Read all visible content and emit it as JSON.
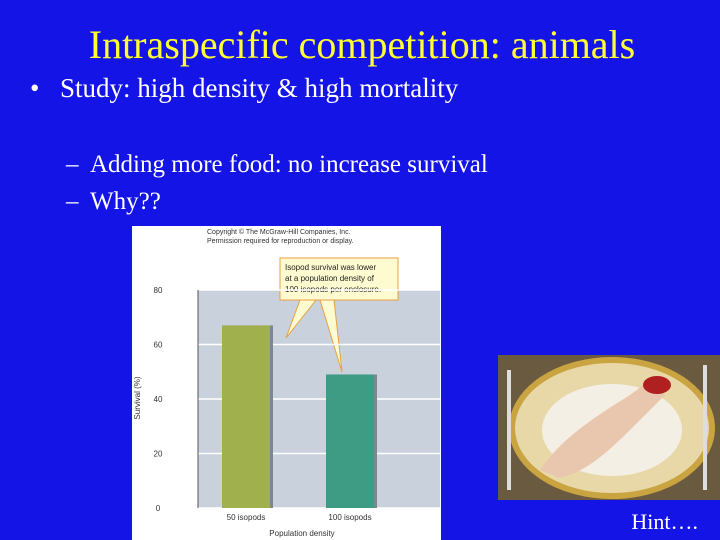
{
  "slide": {
    "title": "Intraspecific competition: animals",
    "bullet": "Study: high density & high mortality",
    "subbullets": [
      "Adding more food: no increase survival",
      "Why??"
    ],
    "hint": "Hint…."
  },
  "chart_data": {
    "type": "bar",
    "copyright": [
      "Copyright © The McGraw-Hill Companies, Inc.",
      "Permission required for reproduction or display."
    ],
    "annotation": [
      "Isopod survival was lower",
      "at a population density of",
      "100 isopods per enclosure."
    ],
    "categories": [
      "50 isopods",
      "100 isopods"
    ],
    "values": [
      67,
      49
    ],
    "colors": [
      "#9fb04c",
      "#3f9c84"
    ],
    "ylabel": "Survival (%)",
    "xlabel": "Population density",
    "ylim": [
      0,
      80
    ],
    "yticks": [
      0,
      20,
      40,
      60,
      80
    ]
  }
}
